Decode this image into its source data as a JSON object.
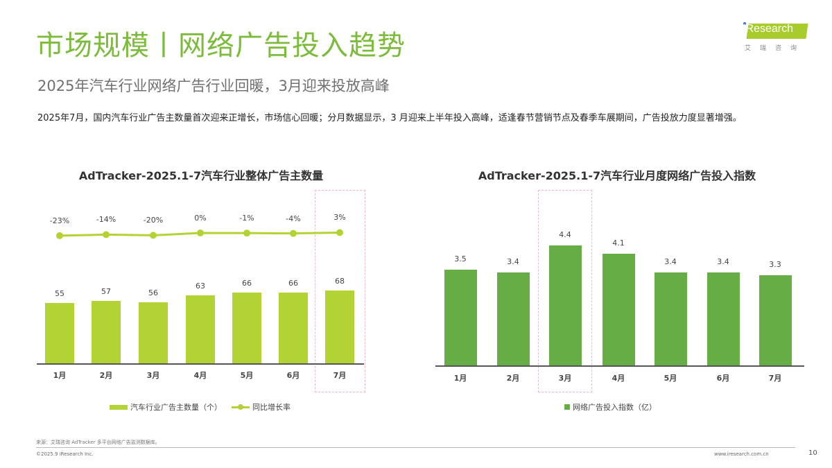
{
  "header": {
    "title": "市场规模丨网络广告投入趋势",
    "subtitle": "2025年汽车行业网络广告行业回暖，3月迎来投放高峰",
    "body": "2025年7月，国内汽车行业广告主数量首次迎来正增长，市场信心回暖；分月数据显示，3 月迎来上半年投入高峰，适逢春节营销节点及春季车展期间，广告投放力度显著增强。"
  },
  "logo": {
    "brand": "iResearch",
    "brand_cn": "艾瑞咨询"
  },
  "colors": {
    "title_green": "#7dbb3c",
    "bar_lime": "#b3d234",
    "line_lime": "#b3d234",
    "bar_green": "#66ad46",
    "highlight_border": "#f2b8bf"
  },
  "chart_data": [
    {
      "type": "bar+line",
      "title": "AdTracker-2025.1-7汽车行业整体广告主数量",
      "categories": [
        "1月",
        "2月",
        "3月",
        "4月",
        "5月",
        "6月",
        "7月"
      ],
      "series": [
        {
          "name": "汽车行业广告主数量（个）",
          "type": "bar",
          "values": [
            55,
            57,
            56,
            63,
            66,
            66,
            68
          ],
          "labels": [
            "55",
            "57",
            "56",
            "63",
            "66",
            "66",
            "68"
          ]
        },
        {
          "name": "同比增长率",
          "type": "line",
          "values": [
            -23,
            -14,
            -20,
            0,
            -1,
            -4,
            3
          ],
          "labels": [
            "-23%",
            "-14%",
            "-20%",
            "0%",
            "-1%",
            "-4%",
            "3%"
          ]
        }
      ],
      "highlight": "7月",
      "legend_position": "bottom",
      "grid": false,
      "xlabel": "",
      "ylabel": ""
    },
    {
      "type": "bar",
      "title": "AdTracker-2025.1-7汽车行业月度网络广告投入指数",
      "categories": [
        "1月",
        "2月",
        "3月",
        "4月",
        "5月",
        "6月",
        "7月"
      ],
      "series": [
        {
          "name": "网络广告投入指数（亿）",
          "values": [
            3.5,
            3.4,
            4.4,
            4.1,
            3.4,
            3.4,
            3.3
          ],
          "labels": [
            "3.5",
            "3.4",
            "4.4",
            "4.1",
            "3.4",
            "3.4",
            "3.3"
          ]
        }
      ],
      "highlight": "3月",
      "legend_position": "bottom",
      "grid": false,
      "xlabel": "",
      "ylabel": ""
    }
  ],
  "footer": {
    "source": "来源：艾瑞咨询 AdTracker 多平台网络广告监测数据库。",
    "copyright": "©2025.9 iResearch Inc.",
    "url": "www.iresearch.com.cn",
    "page": "10"
  }
}
